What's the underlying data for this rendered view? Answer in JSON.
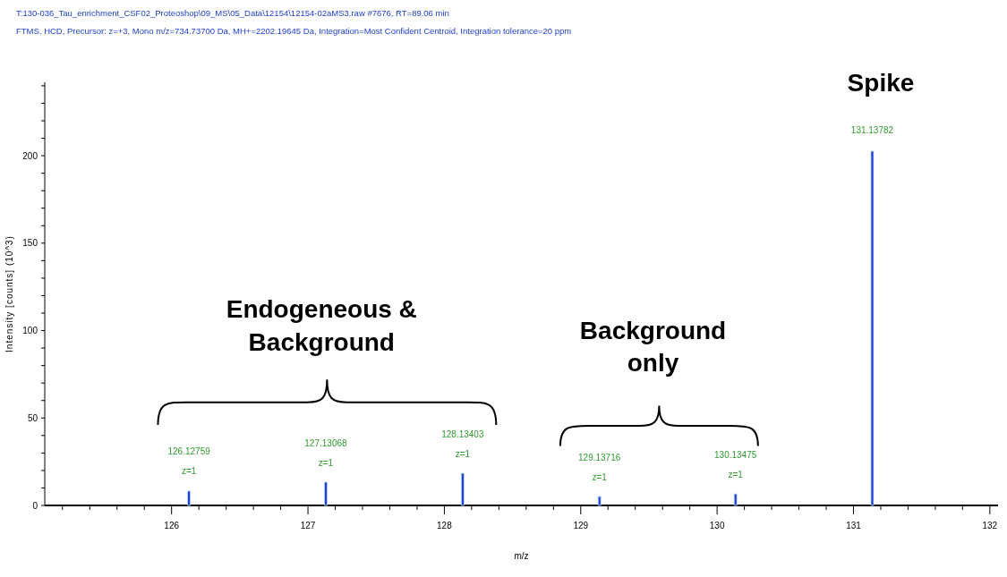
{
  "chart_data": {
    "type": "bar",
    "title": "T:130-036_Tau_enrichment_CSF02_Proteoshop\\09_MS\\05_Data\\12154\\12154-02aMS3.raw #7676, RT=89.06 min",
    "subtitle": "FTMS, HCD, Precursor: z=+3, Mono m/z=734.73700 Da, MH+=2202.19645 Da, Integration=Most Confident Centroid, Integration tolerance=20 ppm",
    "xlabel": "m/z",
    "ylabel": "Intensity [counts] (10^3)",
    "x": [
      126.12759,
      127.13068,
      128.13403,
      129.13716,
      130.13475,
      131.13782
    ],
    "values": [
      8.2,
      13.3,
      18.4,
      5.1,
      6.6,
      202.6
    ],
    "color": "#1f3fd0",
    "xlim": [
      125.07,
      132.06
    ],
    "xticks": [
      {
        "value": 125.2,
        "label": null
      },
      {
        "value": 125.4,
        "label": null
      },
      {
        "value": 125.6,
        "label": null
      },
      {
        "value": 125.8,
        "label": null
      },
      126,
      {
        "value": 126.2,
        "label": null
      },
      {
        "value": 126.4,
        "label": null
      },
      {
        "value": 126.6,
        "label": null
      },
      {
        "value": 126.8,
        "label": null
      },
      127,
      {
        "value": 127.2,
        "label": null
      },
      {
        "value": 127.4,
        "label": null
      },
      {
        "value": 127.6,
        "label": null
      },
      {
        "value": 127.8,
        "label": null
      },
      128,
      {
        "value": 128.2,
        "label": null
      },
      {
        "value": 128.4,
        "label": null
      },
      {
        "value": 128.6,
        "label": null
      },
      {
        "value": 128.8,
        "label": null
      },
      129,
      {
        "value": 129.2,
        "label": null
      },
      {
        "value": 129.4,
        "label": null
      },
      {
        "value": 129.6,
        "label": null
      },
      {
        "value": 129.8,
        "label": null
      },
      130,
      {
        "value": 130.2,
        "label": null
      },
      {
        "value": 130.4,
        "label": null
      },
      {
        "value": 130.6,
        "label": null
      },
      {
        "value": 130.8,
        "label": null
      },
      131,
      {
        "value": 131.2,
        "label": null
      },
      {
        "value": 131.4,
        "label": null
      },
      {
        "value": 131.6,
        "label": null
      },
      {
        "value": 131.8,
        "label": null
      },
      132
    ],
    "ylim": [
      0,
      242
    ],
    "yticks": [
      0,
      {
        "value": 10,
        "label": null
      },
      {
        "value": 20,
        "label": null
      },
      {
        "value": 30,
        "label": null
      },
      {
        "value": 40,
        "label": null
      },
      50,
      {
        "value": 60,
        "label": null
      },
      {
        "value": 70,
        "label": null
      },
      {
        "value": 80,
        "label": null
      },
      {
        "value": 90,
        "label": null
      },
      100,
      {
        "value": 110,
        "label": null
      },
      {
        "value": 120,
        "label": null
      },
      {
        "value": 130,
        "label": null
      },
      {
        "value": 140,
        "label": null
      },
      150,
      {
        "value": 160,
        "label": null
      },
      {
        "value": 170,
        "label": null
      },
      {
        "value": 180,
        "label": null
      },
      {
        "value": 190,
        "label": null
      },
      200,
      {
        "value": 210,
        "label": null
      },
      {
        "value": 220,
        "label": null
      },
      {
        "value": 230,
        "label": null
      },
      {
        "value": 240,
        "label": null
      }
    ],
    "grid": false,
    "annotations": [
      "Spike",
      "Endogeneous & Background",
      "Background only",
      "126.12759",
      "z=1",
      "127.13068",
      "z=1",
      "128.13403",
      "z=1",
      "129.13716",
      "z=1",
      "130.13475",
      "z=1",
      "131.13782"
    ]
  }
}
